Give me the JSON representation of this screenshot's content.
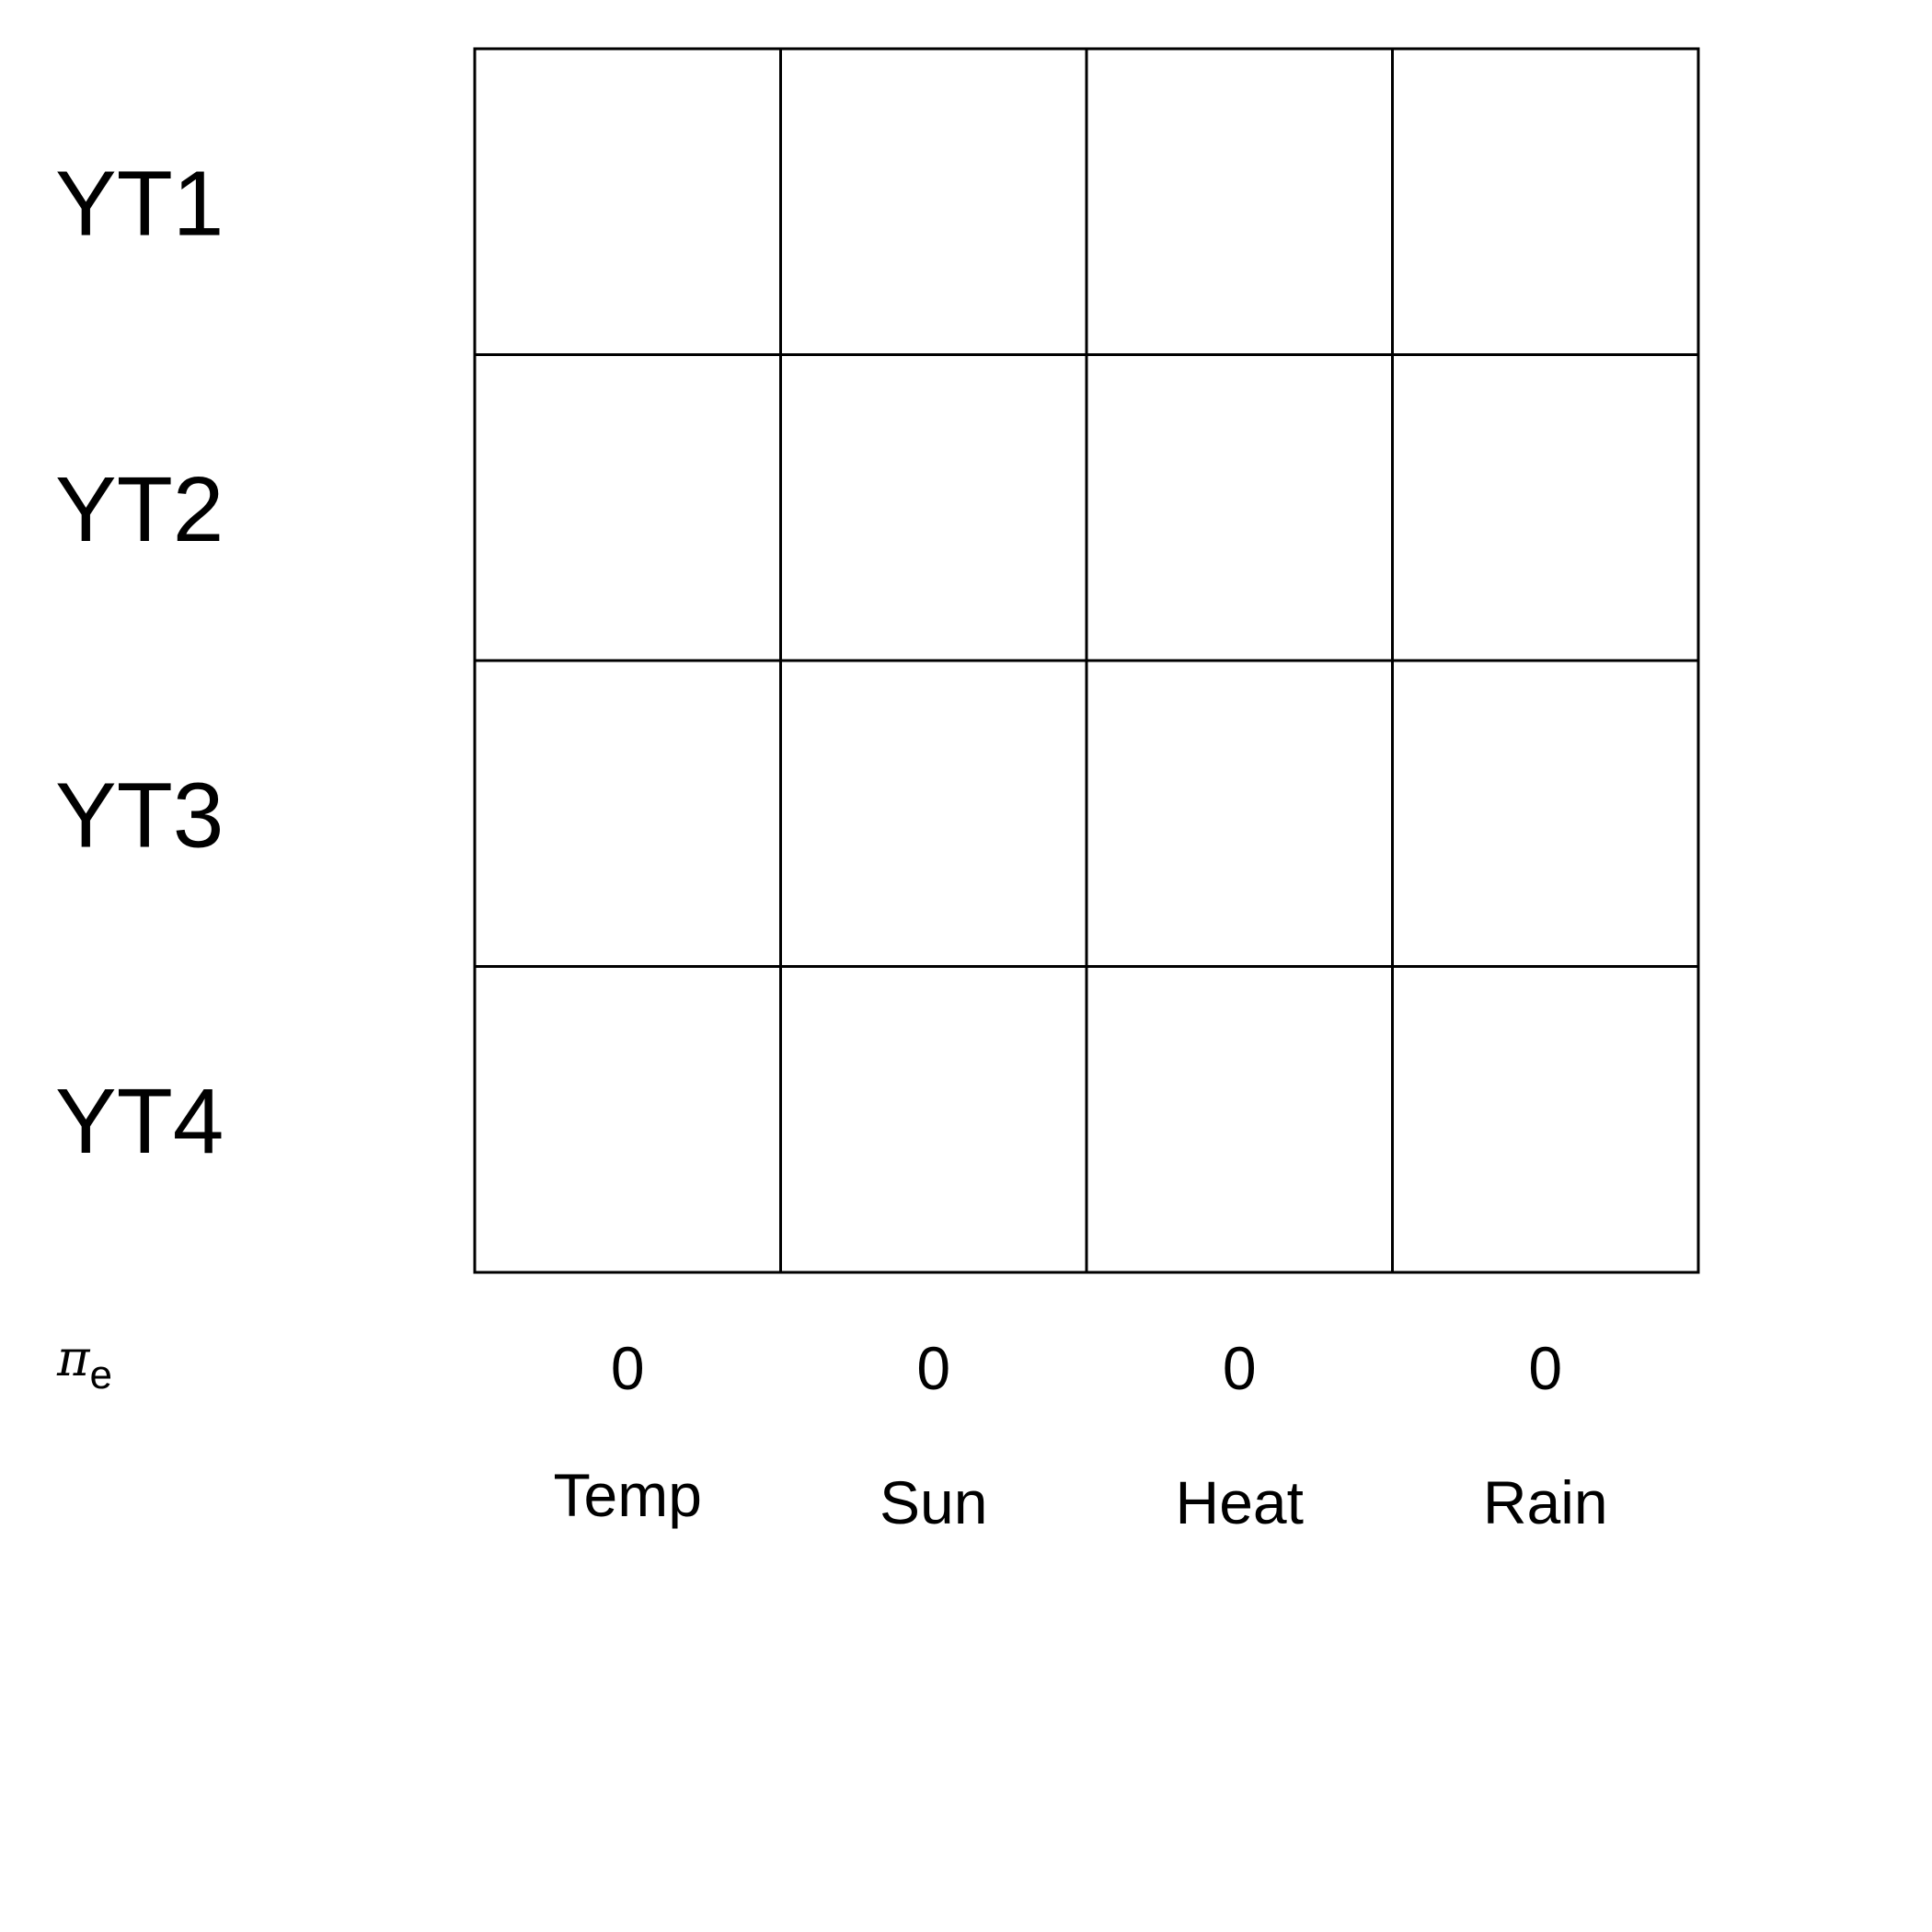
{
  "chart_data": {
    "type": "heatmap",
    "rows": [
      "YT1",
      "YT2",
      "YT3",
      "YT4"
    ],
    "columns": [
      "Temp",
      "Sun",
      "Heat",
      "Rain"
    ],
    "cells": [
      [
        null,
        null,
        null,
        null
      ],
      [
        null,
        null,
        null,
        null
      ],
      [
        null,
        null,
        null,
        null
      ],
      [
        null,
        null,
        null,
        null
      ]
    ],
    "summary_row": {
      "symbol": "π",
      "subscript": "e",
      "values": [
        0,
        0,
        0,
        0
      ]
    },
    "colors": {
      "grid_line": "#000000",
      "cell_fill": "#ffffff",
      "text": "#000000"
    }
  }
}
